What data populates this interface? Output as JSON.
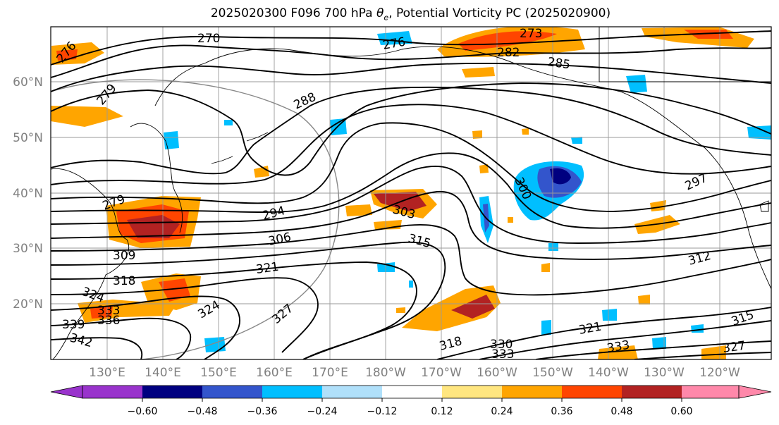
{
  "title": {
    "run": "2025020300 F096 700 hPa",
    "theta": "θ",
    "theta_sub": "e",
    "rest": ", Potential Vorticity PC (2025020900)"
  },
  "lat_labels": [
    "60°N",
    "50°N",
    "40°N",
    "30°N",
    "20°N"
  ],
  "lon_labels": [
    "130°E",
    "140°E",
    "150°E",
    "160°E",
    "170°E",
    "180°W",
    "170°W",
    "160°W",
    "150°W",
    "140°W",
    "130°W",
    "120°W"
  ],
  "colorbar": {
    "colors": [
      "#9933cc",
      "#000080",
      "#3355cc",
      "#00bfff",
      "#b0e0fa",
      "#ffffff",
      "#ffe680",
      "#ffa500",
      "#ff4500",
      "#b22222",
      "#ff88aa"
    ],
    "ticks": [
      "−0.60",
      "−0.48",
      "−0.36",
      "−0.24",
      "−0.12",
      "0.12",
      "0.24",
      "0.36",
      "0.48",
      "0.60"
    ]
  },
  "contour_labels": [
    "270",
    "273",
    "276",
    "279",
    "282",
    "285",
    "288",
    "294",
    "297",
    "300",
    "303",
    "306",
    "309",
    "312",
    "315",
    "318",
    "321",
    "324",
    "327",
    "330",
    "333",
    "336",
    "339",
    "342"
  ]
}
